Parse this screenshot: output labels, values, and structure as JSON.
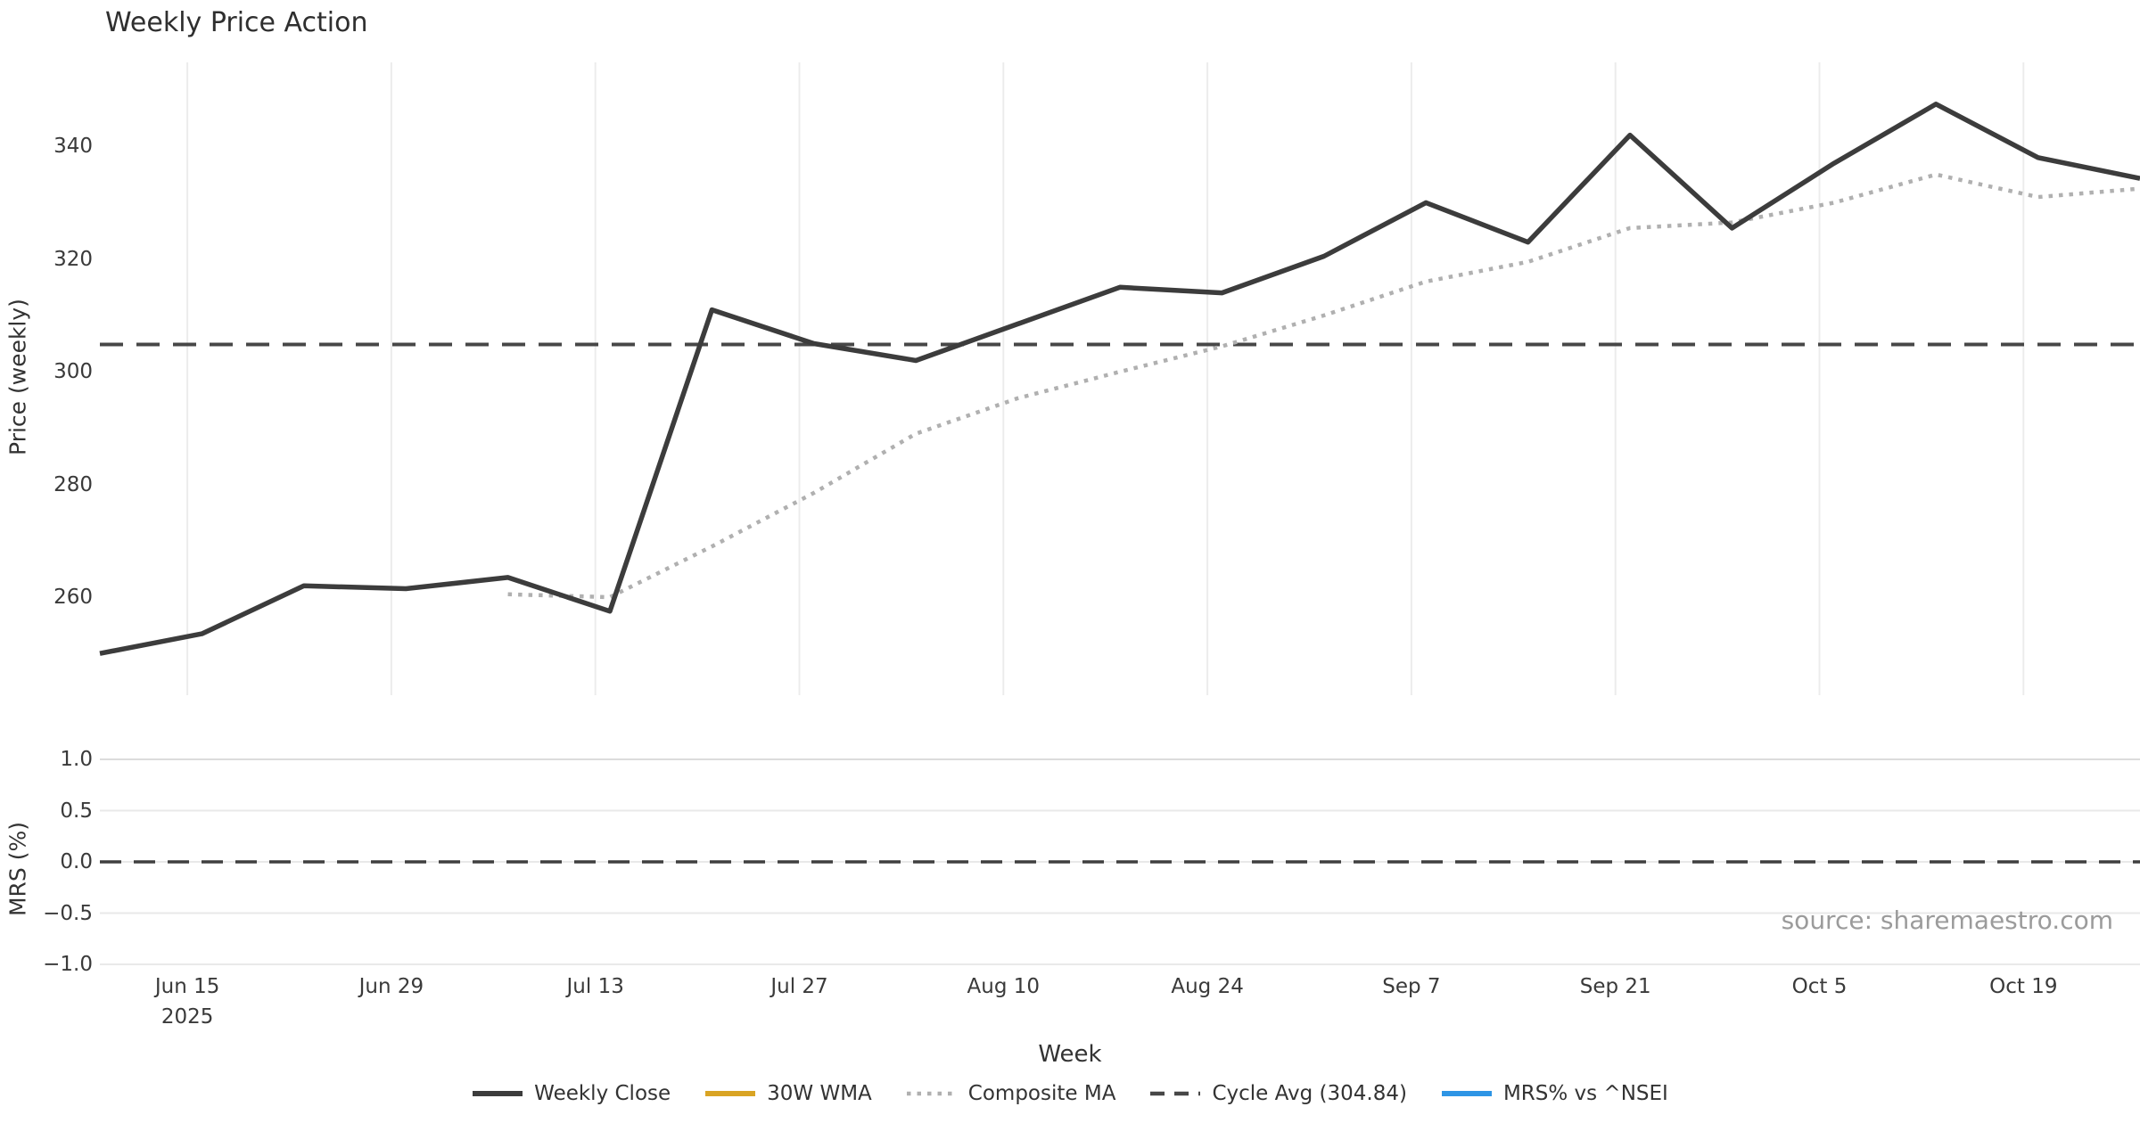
{
  "title": "Weekly Price Action",
  "source_note": "source: sharemaestro.com",
  "axes": {
    "price_label": "Price (weekly)",
    "mrs_label": "MRS (%)",
    "x_label": "Week",
    "x_year": "2025",
    "price_ticks": [
      "260",
      "280",
      "300",
      "320",
      "340"
    ],
    "mrs_ticks": [
      "1.0",
      "0.5",
      "0.0",
      "−0.5",
      "−1.0"
    ],
    "x_ticks": [
      "Jun 15",
      "Jun 29",
      "Jul 13",
      "Jul 27",
      "Aug 10",
      "Aug 24",
      "Sep 7",
      "Sep 21",
      "Oct 5",
      "Oct 19"
    ]
  },
  "legend": [
    {
      "label": "Weekly Close",
      "color": "#3c3c3c",
      "style": "solid"
    },
    {
      "label": "30W WMA",
      "color": "#d9a424",
      "style": "solid"
    },
    {
      "label": "Composite MA",
      "color": "#b0b0b0",
      "style": "dotted"
    },
    {
      "label": "Cycle Avg (304.84)",
      "color": "#474747",
      "style": "dashed"
    },
    {
      "label": "MRS% vs ^NSEI",
      "color": "#2e95e5",
      "style": "solid"
    }
  ],
  "colors": {
    "grid_vertical": "#ececec",
    "grid_horizontal": "#e9e9e9",
    "grid_horizontal_top": "#dcdcdc",
    "close_line": "#3c3c3c",
    "composite_line": "#b0b0b0",
    "cycle_line": "#474747",
    "zero_line": "#3f3f3f"
  },
  "chart_data": {
    "type": "line",
    "x": {
      "dates": [
        "Jun 9",
        "Jun 16",
        "Jun 23",
        "Jun 30",
        "Jul 7",
        "Jul 14",
        "Jul 21",
        "Jul 28",
        "Aug 4",
        "Aug 11",
        "Aug 18",
        "Aug 25",
        "Sep 1",
        "Sep 8",
        "Sep 15",
        "Sep 22",
        "Sep 29",
        "Oct 6",
        "Oct 13",
        "Oct 20",
        "Oct 27"
      ],
      "tick_labels": [
        "Jun 15",
        "Jun 29",
        "Jul 13",
        "Jul 27",
        "Aug 10",
        "Aug 24",
        "Sep 7",
        "Sep 21",
        "Oct 5",
        "Oct 19"
      ],
      "year": "2025"
    },
    "panels": [
      {
        "name": "price",
        "ylabel": "Price (weekly)",
        "ylim": [
          242.6,
          354.9
        ],
        "yticks": [
          260,
          280,
          300,
          320,
          340
        ],
        "grid": "vertical",
        "series": [
          {
            "name": "Weekly Close",
            "style": "solid",
            "color": "#3c3c3c",
            "values": [
              250.0,
              253.5,
              262.0,
              261.5,
              263.5,
              257.5,
              311.0,
              305.0,
              302.0,
              308.5,
              315.0,
              314.0,
              320.5,
              330.0,
              323.0,
              342.0,
              325.5,
              337.0,
              347.5,
              338.0,
              334.3
            ]
          },
          {
            "name": "30W WMA",
            "style": "solid",
            "color": "#d9a424",
            "values": [
              null,
              null,
              null,
              null,
              null,
              null,
              null,
              null,
              null,
              null,
              null,
              null,
              null,
              null,
              null,
              null,
              null,
              null,
              null,
              null,
              null
            ]
          },
          {
            "name": "Composite MA",
            "style": "dotted",
            "color": "#b0b0b0",
            "values": [
              null,
              null,
              null,
              null,
              260.5,
              260.0,
              269.0,
              278.5,
              289.0,
              295.3,
              300.0,
              304.5,
              310.0,
              316.0,
              319.5,
              325.5,
              326.5,
              330.0,
              335.0,
              331.0,
              332.5
            ]
          },
          {
            "name": "Cycle Avg",
            "style": "dashed",
            "color": "#474747",
            "constant": 304.84
          }
        ]
      },
      {
        "name": "mrs",
        "ylabel": "MRS (%)",
        "ylim": [
          -1.113,
          1.148
        ],
        "yticks": [
          1.0,
          0.5,
          0.0,
          -0.5,
          -1.0
        ],
        "grid": "horizontal",
        "series": [
          {
            "name": "MRS% vs ^NSEI",
            "style": "solid",
            "color": "#2e95e5",
            "values": [
              null,
              null,
              null,
              null,
              null,
              null,
              null,
              null,
              null,
              null,
              null,
              null,
              null,
              null,
              null,
              null,
              null,
              null,
              null,
              null,
              null
            ]
          },
          {
            "name": "Zero",
            "style": "dashed",
            "color": "#3f3f3f",
            "constant": 0
          }
        ]
      }
    ]
  }
}
